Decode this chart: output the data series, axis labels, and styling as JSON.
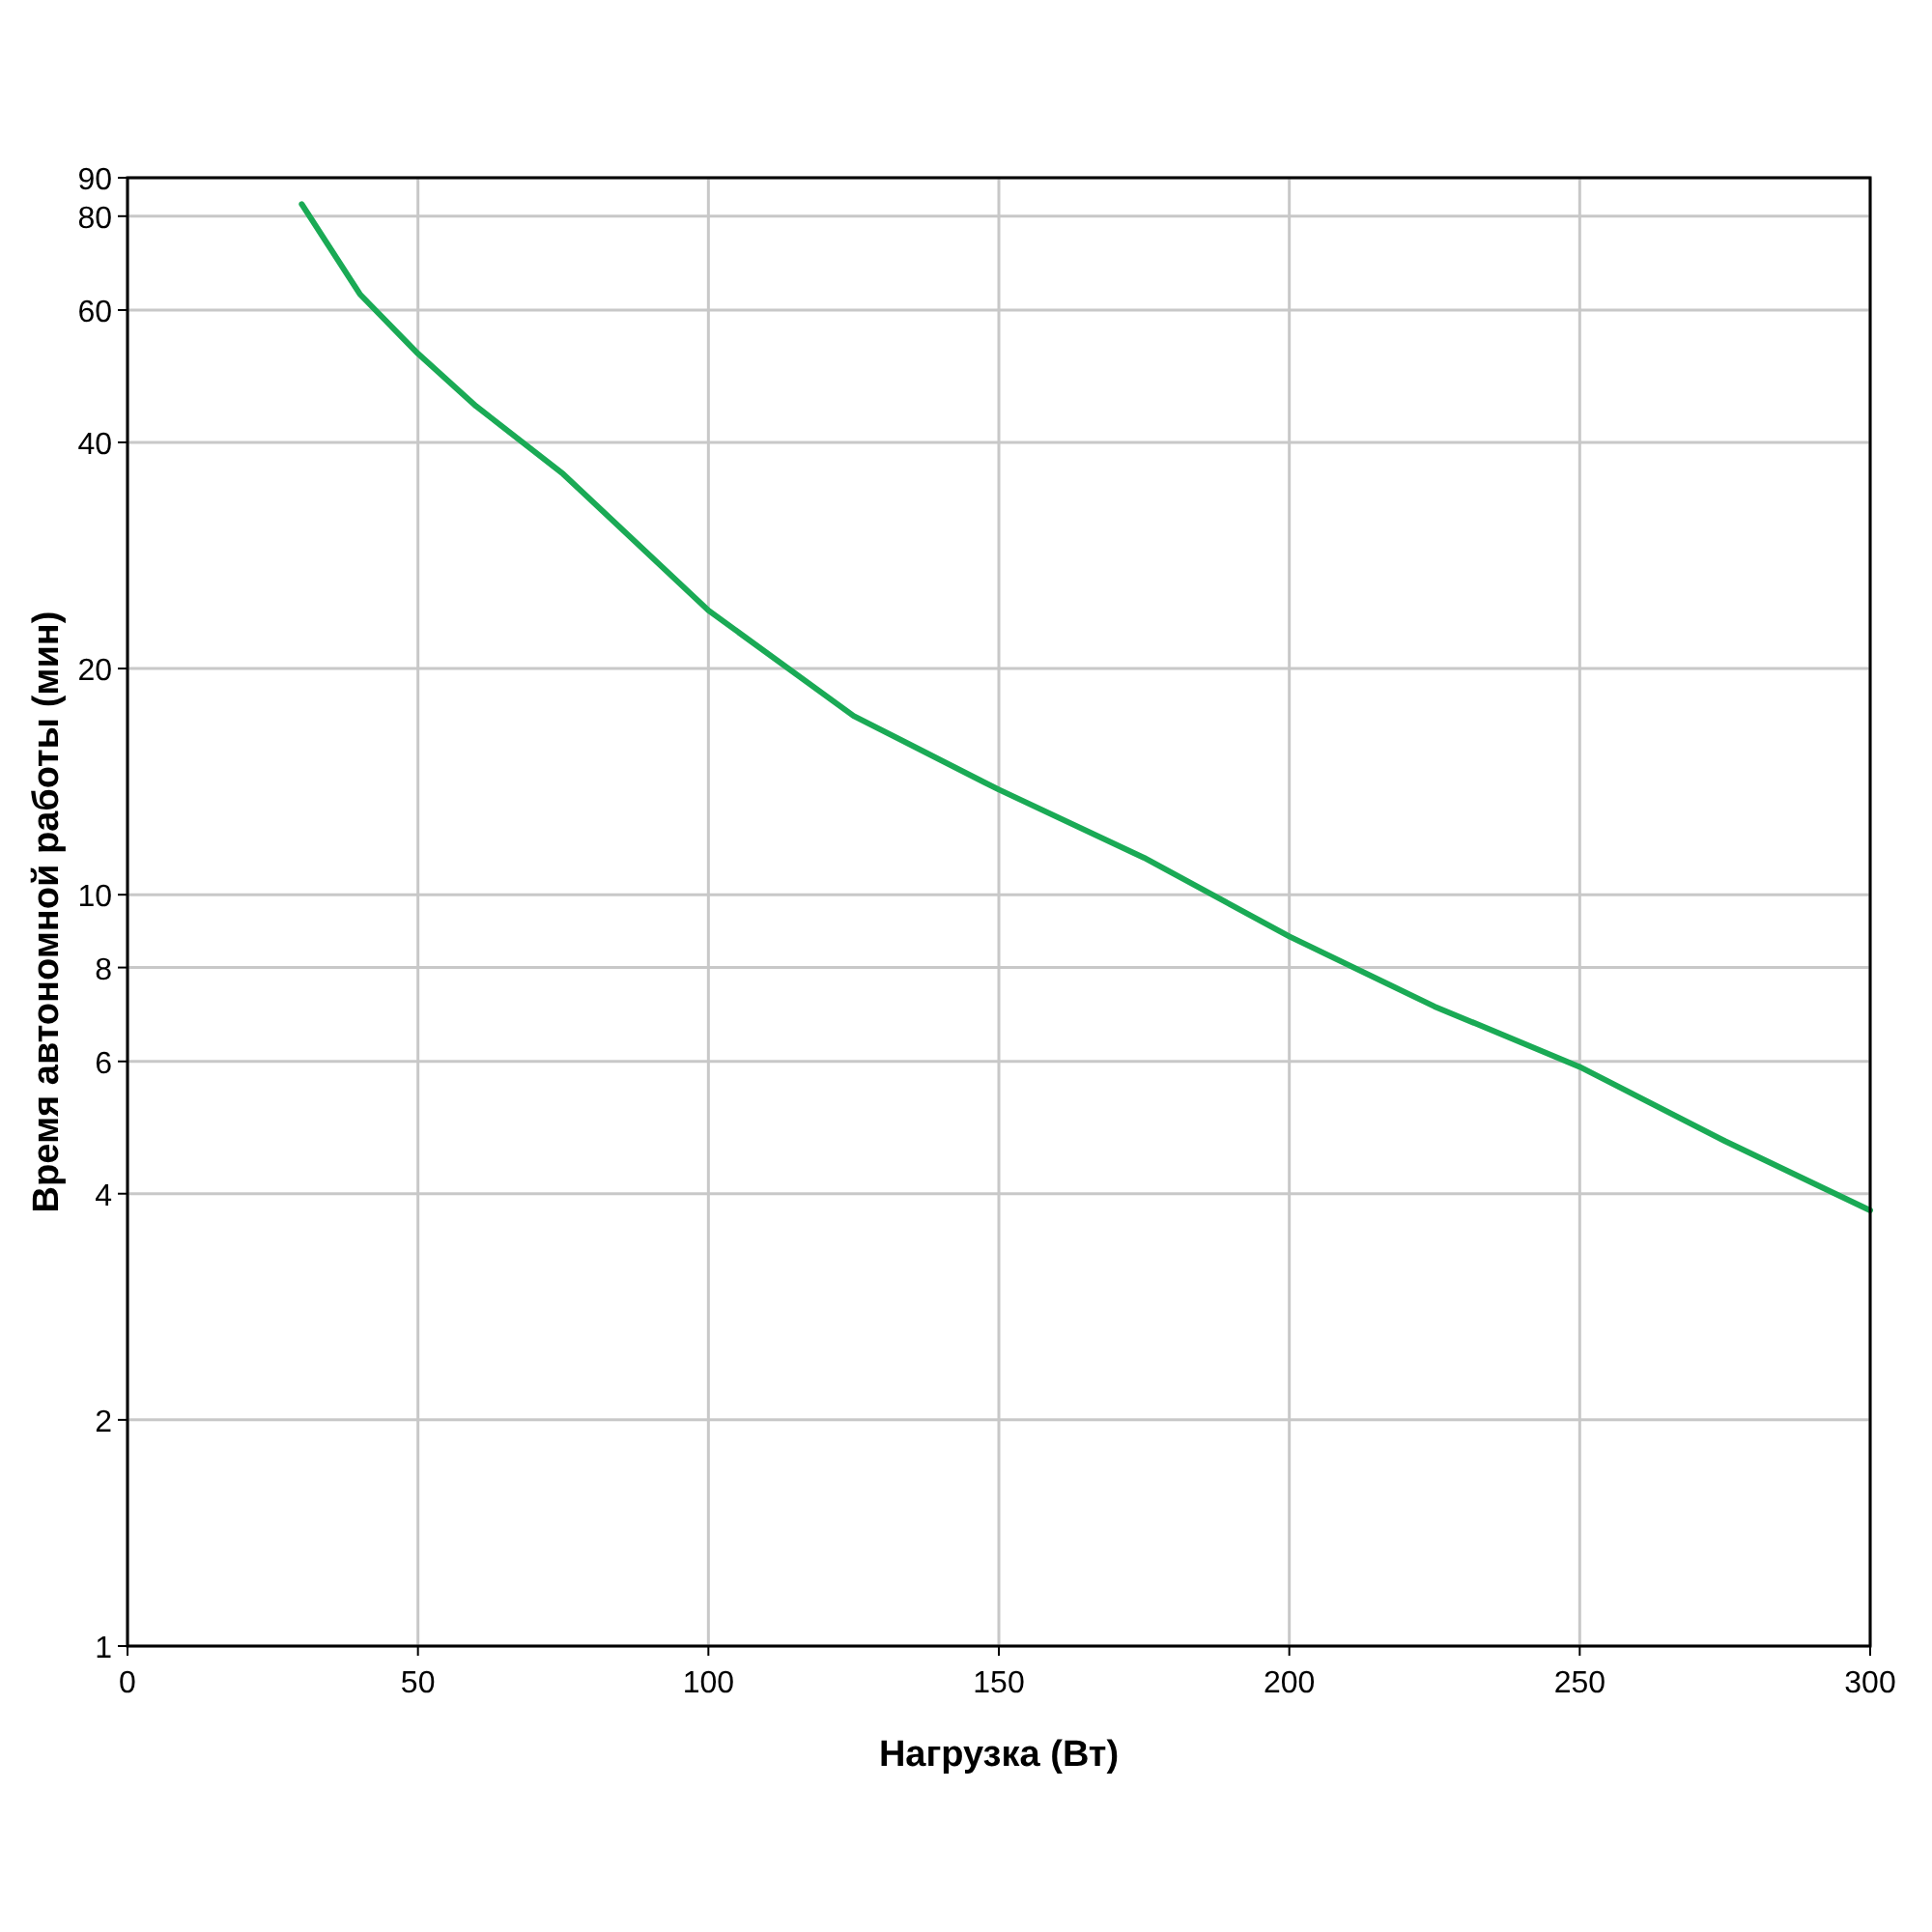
{
  "chart_data": {
    "type": "line",
    "xlabel": "Нагрузка (Вт)",
    "ylabel": "Время автономной работы (мин)",
    "x": [
      30,
      40,
      50,
      60,
      75,
      100,
      125,
      150,
      175,
      200,
      225,
      250,
      275,
      300
    ],
    "series": [
      {
        "color": "#1aaa55",
        "values": [
          83,
          63,
          52.5,
          44.7,
          36.3,
          23.9,
          17.3,
          13.8,
          11.2,
          8.8,
          7.1,
          5.9,
          4.7,
          3.8
        ]
      }
    ],
    "xlim": [
      0,
      300
    ],
    "xticks": [
      0,
      50,
      100,
      150,
      200,
      250,
      300
    ],
    "ylim": [
      1,
      90
    ],
    "yticks": [
      1,
      2,
      4,
      6,
      8,
      10,
      20,
      40,
      60,
      80,
      90
    ],
    "log": "y",
    "grid": true,
    "marker": "none",
    "line_style": "solid"
  }
}
